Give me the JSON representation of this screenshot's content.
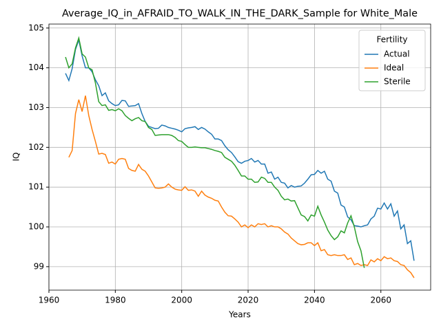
{
  "chart_data": {
    "type": "line",
    "title": "Average_IQ_in_AFRAID_TO_WALK_IN_THE_DARK_Sample for White_Male",
    "x_label": "Years",
    "y_label": "IQ",
    "legend_title": "Fertility",
    "legend_loc": "upper right",
    "grid": true,
    "xlim": [
      1960,
      2075
    ],
    "ylim": [
      98.41,
      105.1
    ],
    "xticks": [
      1960,
      1980,
      2000,
      2020,
      2040,
      2060
    ],
    "yticks": [
      99,
      100,
      101,
      102,
      103,
      104,
      105
    ],
    "x": [
      1965,
      1966,
      1967,
      1968,
      1969,
      1970,
      1971,
      1972,
      1973,
      1974,
      1975,
      1976,
      1977,
      1978,
      1979,
      1980,
      1981,
      1982,
      1983,
      1984,
      1985,
      1986,
      1987,
      1988,
      1989,
      1990,
      1991,
      1992,
      1993,
      1994,
      1995,
      1996,
      1997,
      1998,
      1999,
      2000,
      2001,
      2002,
      2003,
      2004,
      2005,
      2006,
      2007,
      2008,
      2009,
      2010,
      2011,
      2012,
      2013,
      2014,
      2015,
      2016,
      2017,
      2018,
      2019,
      2020,
      2021,
      2022,
      2023,
      2024,
      2025,
      2026,
      2027,
      2028,
      2029,
      2030,
      2031,
      2032,
      2033,
      2034,
      2035,
      2036,
      2037,
      2038,
      2039,
      2040,
      2041,
      2042,
      2043,
      2044,
      2045,
      2046,
      2047,
      2048,
      2049,
      2050,
      2051,
      2052,
      2053,
      2054,
      2055,
      2056,
      2057,
      2058,
      2059,
      2060,
      2061,
      2062,
      2063,
      2064,
      2065,
      2066,
      2067,
      2068,
      2069,
      2070
    ],
    "series": [
      {
        "name": "Actual",
        "color": "#1f77b4",
        "values": [
          103.86,
          103.68,
          103.98,
          104.46,
          104.7,
          104.3,
          104.0,
          104.0,
          103.9,
          103.7,
          103.55,
          103.3,
          103.37,
          103.17,
          103.1,
          103.05,
          103.07,
          103.18,
          103.17,
          103.03,
          103.04,
          103.05,
          103.1,
          102.85,
          102.65,
          102.53,
          102.5,
          102.47,
          102.48,
          102.56,
          102.54,
          102.5,
          102.48,
          102.46,
          102.43,
          102.39,
          102.47,
          102.49,
          102.5,
          102.52,
          102.45,
          102.5,
          102.46,
          102.39,
          102.33,
          102.21,
          102.21,
          102.17,
          102.04,
          101.94,
          101.87,
          101.76,
          101.64,
          101.6,
          101.65,
          101.67,
          101.72,
          101.63,
          101.67,
          101.58,
          101.58,
          101.35,
          101.38,
          101.2,
          101.25,
          101.12,
          101.1,
          100.98,
          101.04,
          101.0,
          101.02,
          101.03,
          101.1,
          101.2,
          101.31,
          101.32,
          101.42,
          101.35,
          101.4,
          101.2,
          101.15,
          100.9,
          100.85,
          100.55,
          100.5,
          100.25,
          100.18,
          100.03,
          100.02,
          100.0,
          100.03,
          100.05,
          100.2,
          100.27,
          100.47,
          100.45,
          100.6,
          100.45,
          100.58,
          100.27,
          100.4,
          99.95,
          100.05,
          99.58,
          99.65,
          99.15
        ]
      },
      {
        "name": "Ideal",
        "color": "#ff7f0e",
        "values": [
          null,
          101.75,
          101.92,
          102.85,
          103.2,
          102.9,
          103.3,
          102.8,
          102.45,
          102.15,
          101.83,
          101.85,
          101.82,
          101.6,
          101.63,
          101.58,
          101.7,
          101.72,
          101.7,
          101.47,
          101.42,
          101.4,
          101.57,
          101.45,
          101.4,
          101.28,
          101.13,
          100.98,
          100.97,
          100.98,
          101.0,
          101.08,
          101.0,
          100.95,
          100.93,
          100.92,
          101.01,
          100.92,
          100.93,
          100.9,
          100.77,
          100.9,
          100.8,
          100.75,
          100.72,
          100.67,
          100.65,
          100.5,
          100.37,
          100.28,
          100.27,
          100.2,
          100.12,
          100.0,
          100.05,
          99.98,
          100.05,
          100.0,
          100.08,
          100.06,
          100.08,
          100.0,
          100.03,
          100.0,
          100.0,
          99.95,
          99.87,
          99.82,
          99.72,
          99.65,
          99.58,
          99.55,
          99.56,
          99.6,
          99.6,
          99.53,
          99.6,
          99.4,
          99.43,
          99.3,
          99.28,
          99.3,
          99.28,
          99.28,
          99.3,
          99.18,
          99.22,
          99.05,
          99.08,
          99.03,
          99.05,
          99.03,
          99.17,
          99.12,
          99.2,
          99.15,
          99.25,
          99.2,
          99.22,
          99.15,
          99.13,
          99.05,
          99.03,
          98.92,
          98.85,
          98.72
        ]
      },
      {
        "name": "Sterile",
        "color": "#2ca02c",
        "values": [
          104.27,
          104.0,
          104.1,
          104.5,
          104.75,
          104.35,
          104.27,
          104.0,
          103.95,
          103.62,
          103.15,
          103.05,
          103.07,
          102.93,
          102.95,
          102.92,
          102.97,
          102.92,
          102.8,
          102.73,
          102.67,
          102.72,
          102.75,
          102.67,
          102.65,
          102.5,
          102.45,
          102.3,
          102.31,
          102.32,
          102.32,
          102.32,
          102.3,
          102.25,
          102.17,
          102.15,
          102.07,
          102.0,
          102.0,
          102.01,
          102.0,
          101.99,
          101.99,
          101.97,
          101.95,
          101.92,
          101.9,
          101.87,
          101.75,
          101.7,
          101.65,
          101.55,
          101.42,
          101.28,
          101.28,
          101.2,
          101.2,
          101.12,
          101.13,
          101.25,
          101.22,
          101.12,
          101.12,
          101.0,
          100.92,
          100.77,
          100.68,
          100.7,
          100.65,
          100.66,
          100.48,
          100.3,
          100.26,
          100.15,
          100.3,
          100.27,
          100.52,
          100.3,
          100.12,
          99.92,
          99.78,
          99.68,
          99.75,
          99.9,
          99.85,
          100.1,
          100.28,
          100.0,
          99.63,
          99.4,
          98.97,
          null,
          null,
          null,
          null,
          null,
          null,
          null,
          null,
          null,
          null,
          null,
          null,
          null,
          null,
          null
        ]
      }
    ]
  }
}
